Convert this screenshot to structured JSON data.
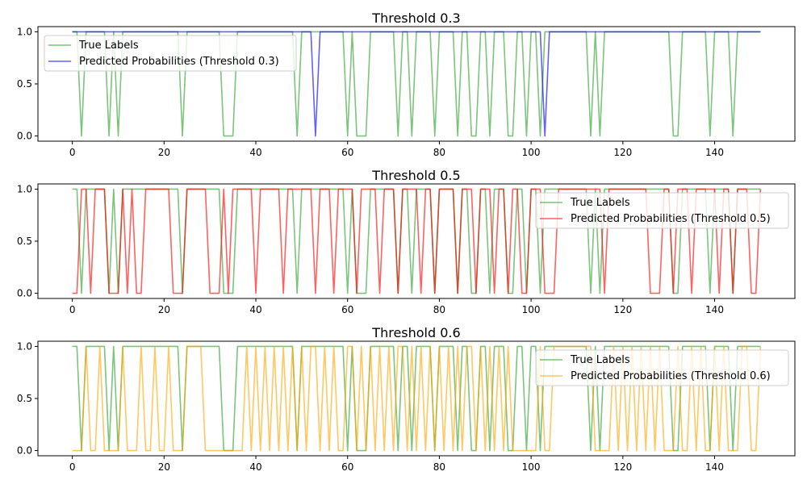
{
  "chart_data": [
    {
      "type": "line",
      "title": "Threshold 0.3",
      "xlabel": "",
      "ylabel": "",
      "xlim": [
        -7.5,
        157.5
      ],
      "ylim": [
        -0.05,
        1.05
      ],
      "xticks": [
        0,
        20,
        40,
        60,
        80,
        100,
        120,
        140
      ],
      "yticks": [
        0.0,
        0.5,
        1.0
      ],
      "ytick_labels": [
        "0.0",
        "0.5",
        "1.0"
      ],
      "legend": "upper left",
      "series": [
        {
          "name": "True Labels",
          "color": "#2ca02c",
          "zeros": [
            2,
            8,
            10,
            24,
            33,
            34,
            35,
            49,
            60,
            62,
            63,
            64,
            71,
            74,
            79,
            84,
            87,
            88,
            91,
            95,
            96,
            99,
            102,
            113,
            115,
            131,
            132,
            139,
            144
          ]
        },
        {
          "name": "Predicted Probabilities (Threshold 0.3)",
          "color": "#0000ff",
          "zeros": [
            53,
            103
          ]
        }
      ]
    },
    {
      "type": "line",
      "title": "Threshold 0.5",
      "xlabel": "",
      "ylabel": "",
      "xlim": [
        -7.5,
        157.5
      ],
      "ylim": [
        -0.05,
        1.05
      ],
      "xticks": [
        0,
        20,
        40,
        60,
        80,
        100,
        120,
        140
      ],
      "yticks": [
        0.0,
        0.5,
        1.0
      ],
      "ytick_labels": [
        "0.0",
        "0.5",
        "1.0"
      ],
      "legend": "upper right",
      "series": [
        {
          "name": "True Labels",
          "color": "#2ca02c",
          "zeros": [
            2,
            8,
            10,
            24,
            33,
            34,
            35,
            49,
            60,
            62,
            63,
            64,
            71,
            74,
            79,
            84,
            87,
            88,
            91,
            95,
            96,
            99,
            102,
            113,
            115,
            131,
            132,
            139,
            144
          ]
        },
        {
          "name": "Predicted Probabilities (Threshold 0.5)",
          "color": "#ff0000",
          "zeros": [
            0,
            1,
            4,
            8,
            9,
            10,
            12,
            14,
            15,
            22,
            23,
            24,
            30,
            31,
            32,
            34,
            40,
            46,
            53,
            57,
            62,
            67,
            71,
            76,
            79,
            84,
            88,
            92,
            95,
            98,
            99,
            103,
            104,
            105,
            116,
            126,
            127,
            128,
            131,
            135,
            141,
            144,
            148,
            149
          ]
        }
      ]
    },
    {
      "type": "line",
      "title": "Threshold 0.6",
      "xlabel": "",
      "ylabel": "",
      "xlim": [
        -7.5,
        157.5
      ],
      "ylim": [
        -0.05,
        1.05
      ],
      "xticks": [
        0,
        20,
        40,
        60,
        80,
        100,
        120,
        140
      ],
      "yticks": [
        0.0,
        0.5,
        1.0
      ],
      "ytick_labels": [
        "0.0",
        "0.5",
        "1.0"
      ],
      "legend": "upper right",
      "series": [
        {
          "name": "True Labels",
          "color": "#2ca02c",
          "zeros": [
            2,
            8,
            10,
            24,
            33,
            34,
            35,
            49,
            60,
            62,
            63,
            64,
            71,
            74,
            79,
            84,
            87,
            88,
            91,
            95,
            96,
            99,
            102,
            113,
            115,
            131,
            132,
            139,
            144
          ]
        },
        {
          "name": "Predicted Probabilities (Threshold 0.6)",
          "color": "#ffa500",
          "zeros": [
            0,
            1,
            2,
            4,
            5,
            7,
            8,
            9,
            10,
            12,
            13,
            14,
            16,
            17,
            19,
            20,
            22,
            23,
            24,
            29,
            30,
            31,
            32,
            33,
            34,
            35,
            36,
            37,
            39,
            41,
            43,
            45,
            47,
            49,
            51,
            54,
            56,
            58,
            59,
            62,
            64,
            66,
            68,
            70,
            73,
            75,
            77,
            79,
            81,
            83,
            85,
            88,
            90,
            92,
            94,
            96,
            97,
            98,
            99,
            100,
            101,
            103,
            104,
            114,
            115,
            116,
            117,
            119,
            121,
            123,
            125,
            127,
            129,
            130,
            131,
            133,
            134,
            136,
            138,
            139,
            141,
            143,
            144,
            145,
            148,
            149
          ]
        }
      ]
    }
  ]
}
